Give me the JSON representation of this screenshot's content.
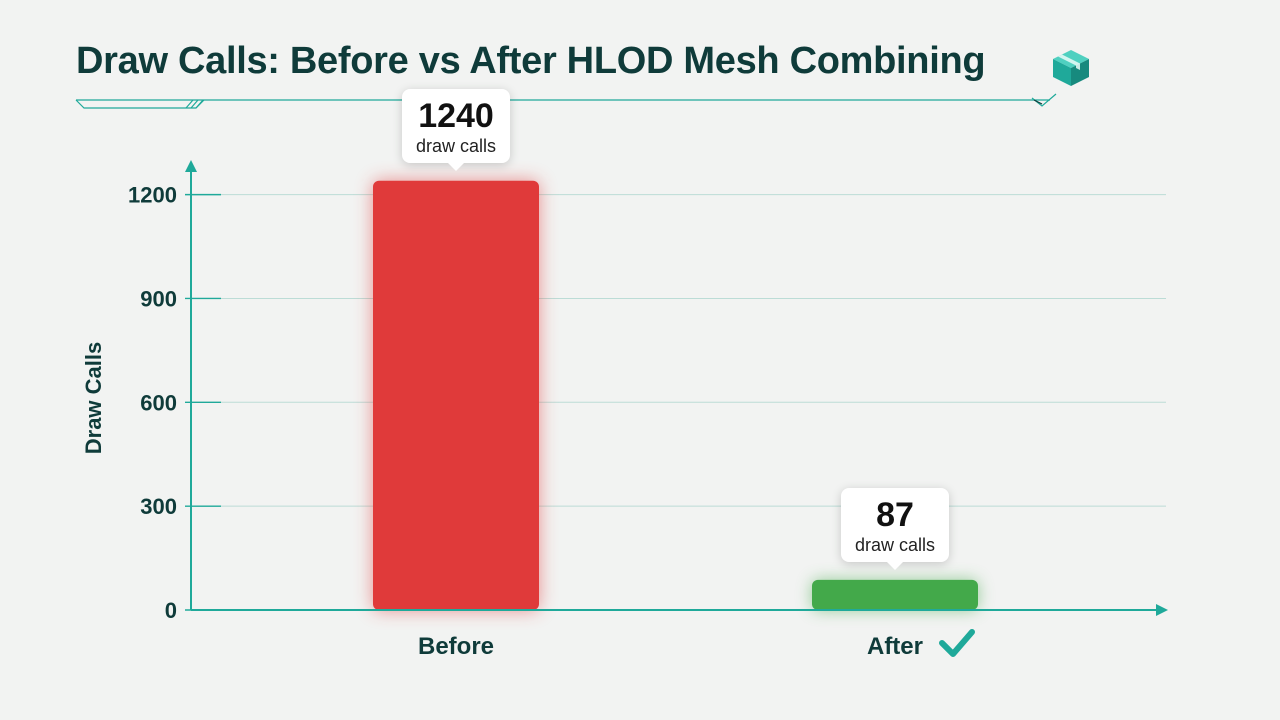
{
  "title": "Draw Calls: Before vs After HLOD Mesh Combining",
  "colors": {
    "before": "#e03a3a",
    "after": "#43a94a",
    "accent": "#1fa99a",
    "text": "#0f3b3a"
  },
  "icons": {
    "title_icon": "cube-icon",
    "after_icon": "checkmark-icon"
  },
  "chart_data": {
    "type": "bar",
    "categories": [
      "Before",
      "After"
    ],
    "values": [
      1240,
      87
    ],
    "value_labels": [
      "1240",
      "87"
    ],
    "value_unit": "draw calls",
    "ylabel": "Draw Calls",
    "xlabel": "",
    "ylim": [
      0,
      1300
    ],
    "yticks": [
      0,
      300,
      600,
      900,
      1200
    ],
    "ytick_labels": [
      "0",
      "300",
      "600",
      "900",
      "1200"
    ],
    "grid": true,
    "bar_colors": [
      "#e03a3a",
      "#43a94a"
    ]
  }
}
